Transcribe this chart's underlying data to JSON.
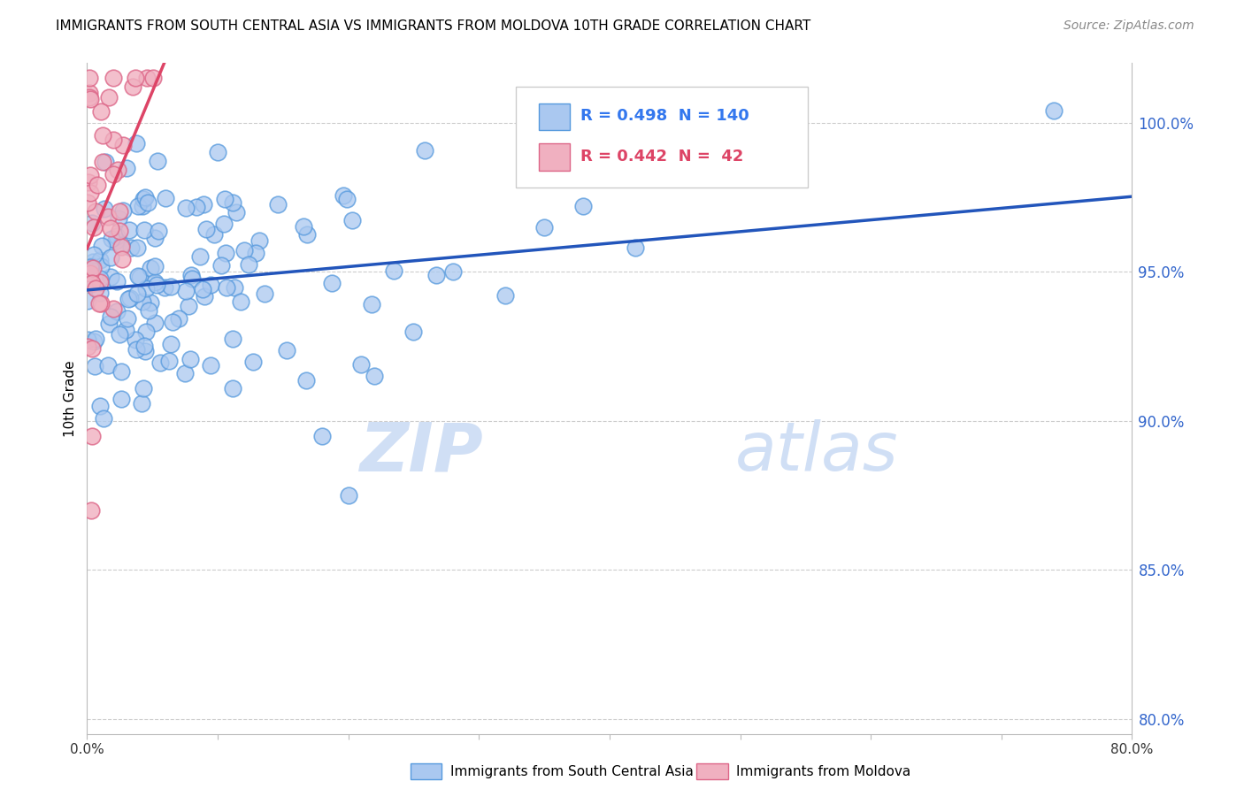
{
  "title": "IMMIGRANTS FROM SOUTH CENTRAL ASIA VS IMMIGRANTS FROM MOLDOVA 10TH GRADE CORRELATION CHART",
  "source": "Source: ZipAtlas.com",
  "ylabel": "10th Grade",
  "yticks": [
    80.0,
    85.0,
    90.0,
    95.0,
    100.0
  ],
  "ytick_labels": [
    "80.0%",
    "85.0%",
    "90.0%",
    "95.0%",
    "100.0%"
  ],
  "xmin": 0.0,
  "xmax": 80.0,
  "ymin": 79.5,
  "ymax": 102.0,
  "series1_label": "Immigrants from South Central Asia",
  "series1_color": "#aac8f0",
  "series1_edge": "#5599dd",
  "series1_R": 0.498,
  "series1_N": 140,
  "series1_line_color": "#2255bb",
  "series2_label": "Immigrants from Moldova",
  "series2_color": "#f0b0c0",
  "series2_edge": "#dd6688",
  "series2_R": 0.442,
  "series2_N": 42,
  "series2_line_color": "#dd4466",
  "watermark_zip": "ZIP",
  "watermark_atlas": "atlas",
  "watermark_color": "#d0dff5",
  "legend_R1_color": "#3377ee",
  "legend_R2_color": "#dd4466",
  "legend_N1_color": "#3377ee",
  "legend_N2_color": "#dd4466"
}
